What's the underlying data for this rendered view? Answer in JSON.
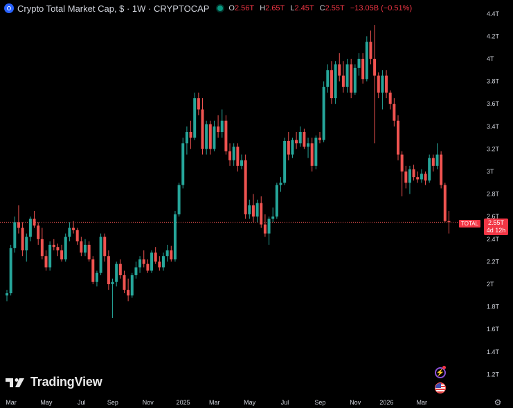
{
  "legend": {
    "title": "Crypto Total Market Cap, $ · 1W · CRYPTOCAP",
    "open_label": "O",
    "open": "2.56T",
    "high_label": "H",
    "high": "2.65T",
    "low_label": "L",
    "low": "2.45T",
    "close_label": "C",
    "close": "2.55T",
    "change": "−13.05B (−0.51%)"
  },
  "brand": {
    "name": "TradingView"
  },
  "price_tag": {
    "symbol": "TOTAL",
    "value": "2.55T",
    "countdown": "4d 12h"
  },
  "colors": {
    "up": "#26a69a",
    "down": "#ef5350",
    "background": "#000000",
    "text": "#d1d4dc",
    "accent": "#2962ff"
  },
  "icons": [
    "crypto-symbol-icon",
    "status-dot-icon",
    "tradingview-logo-icon",
    "lightning-icon",
    "us-flag-icon",
    "settings-icon"
  ],
  "chart_data": {
    "type": "candlestick",
    "y_ticks": [
      1.2,
      1.4,
      1.6,
      1.8,
      2.0,
      2.2,
      2.4,
      2.6,
      2.8,
      3.0,
      3.2,
      3.4,
      3.6,
      3.8,
      4.0,
      4.2,
      4.4
    ],
    "y_tick_labels": [
      "1.2T",
      "1.4T",
      "1.6T",
      "1.8T",
      "2T",
      "2.2T",
      "2.4T",
      "2.6T",
      "2.8T",
      "3T",
      "3.2T",
      "3.4T",
      "3.6T",
      "3.8T",
      "4T",
      "4.2T",
      "4.4T"
    ],
    "x_tick_labels": [
      "Mar",
      "May",
      "Jul",
      "Sep",
      "Nov",
      "2025",
      "Mar",
      "May",
      "Jul",
      "Sep",
      "Nov",
      "2026",
      "Mar"
    ],
    "x_tick_weeks": [
      0,
      9,
      18,
      26,
      35,
      44,
      52,
      61,
      70,
      79,
      88,
      96,
      105
    ],
    "last_price": 2.55,
    "candles": [
      [
        1.9,
        1.95,
        1.85,
        1.92
      ],
      [
        1.92,
        2.35,
        1.9,
        2.32
      ],
      [
        2.32,
        2.6,
        2.28,
        2.55
      ],
      [
        2.55,
        2.7,
        2.45,
        2.5
      ],
      [
        2.5,
        2.55,
        2.25,
        2.3
      ],
      [
        2.3,
        2.45,
        2.2,
        2.42
      ],
      [
        2.42,
        2.6,
        2.38,
        2.58
      ],
      [
        2.58,
        2.65,
        2.5,
        2.52
      ],
      [
        2.52,
        2.55,
        2.35,
        2.4
      ],
      [
        2.4,
        2.5,
        2.22,
        2.25
      ],
      [
        2.25,
        2.3,
        2.12,
        2.15
      ],
      [
        2.15,
        2.38,
        2.12,
        2.35
      ],
      [
        2.35,
        2.4,
        2.3,
        2.33
      ],
      [
        2.33,
        2.36,
        2.25,
        2.3
      ],
      [
        2.3,
        2.35,
        2.2,
        2.22
      ],
      [
        2.22,
        2.45,
        2.2,
        2.42
      ],
      [
        2.42,
        2.55,
        2.38,
        2.5
      ],
      [
        2.5,
        2.56,
        2.45,
        2.48
      ],
      [
        2.48,
        2.5,
        2.35,
        2.38
      ],
      [
        2.38,
        2.42,
        2.25,
        2.28
      ],
      [
        2.28,
        2.4,
        2.25,
        2.35
      ],
      [
        2.35,
        2.38,
        2.2,
        2.22
      ],
      [
        2.22,
        2.25,
        2.0,
        2.02
      ],
      [
        2.02,
        2.12,
        1.98,
        2.1
      ],
      [
        2.1,
        2.45,
        2.08,
        2.42
      ],
      [
        2.42,
        2.45,
        2.2,
        2.25
      ],
      [
        2.25,
        2.3,
        1.95,
        2.0
      ],
      [
        2.0,
        2.05,
        1.7,
        2.02
      ],
      [
        2.02,
        2.2,
        1.98,
        2.18
      ],
      [
        2.18,
        2.22,
        2.05,
        2.08
      ],
      [
        2.08,
        2.12,
        1.92,
        1.95
      ],
      [
        1.95,
        2.05,
        1.85,
        1.9
      ],
      [
        1.9,
        2.1,
        1.88,
        2.08
      ],
      [
        2.08,
        2.2,
        2.05,
        2.15
      ],
      [
        2.15,
        2.25,
        2.1,
        2.22
      ],
      [
        2.22,
        2.3,
        2.15,
        2.18
      ],
      [
        2.18,
        2.22,
        2.1,
        2.12
      ],
      [
        2.12,
        2.3,
        2.1,
        2.28
      ],
      [
        2.28,
        2.33,
        2.18,
        2.2
      ],
      [
        2.2,
        2.25,
        2.12,
        2.15
      ],
      [
        2.15,
        2.28,
        2.12,
        2.25
      ],
      [
        2.25,
        2.35,
        2.2,
        2.3
      ],
      [
        2.3,
        2.34,
        2.2,
        2.22
      ],
      [
        2.22,
        2.65,
        2.2,
        2.62
      ],
      [
        2.62,
        2.9,
        2.6,
        2.88
      ],
      [
        2.88,
        3.3,
        2.85,
        3.25
      ],
      [
        3.25,
        3.4,
        3.15,
        3.35
      ],
      [
        3.35,
        3.45,
        3.2,
        3.3
      ],
      [
        3.3,
        3.7,
        3.28,
        3.65
      ],
      [
        3.65,
        3.7,
        3.5,
        3.55
      ],
      [
        3.55,
        3.65,
        3.15,
        3.2
      ],
      [
        3.2,
        3.45,
        3.15,
        3.42
      ],
      [
        3.42,
        3.45,
        3.15,
        3.2
      ],
      [
        3.2,
        3.45,
        3.18,
        3.4
      ],
      [
        3.4,
        3.5,
        3.3,
        3.35
      ],
      [
        3.35,
        3.55,
        3.3,
        3.45
      ],
      [
        3.45,
        3.5,
        3.15,
        3.18
      ],
      [
        3.18,
        3.25,
        3.05,
        3.1
      ],
      [
        3.1,
        3.25,
        3.05,
        3.22
      ],
      [
        3.22,
        3.25,
        3.0,
        3.05
      ],
      [
        3.05,
        3.15,
        3.02,
        3.1
      ],
      [
        3.1,
        3.15,
        2.58,
        2.62
      ],
      [
        2.62,
        2.75,
        2.58,
        2.7
      ],
      [
        2.7,
        2.8,
        2.55,
        2.6
      ],
      [
        2.6,
        2.75,
        2.55,
        2.72
      ],
      [
        2.72,
        2.78,
        2.5,
        2.53
      ],
      [
        2.53,
        2.62,
        2.42,
        2.45
      ],
      [
        2.45,
        2.6,
        2.35,
        2.58
      ],
      [
        2.58,
        2.68,
        2.55,
        2.6
      ],
      [
        2.6,
        2.9,
        2.58,
        2.88
      ],
      [
        2.88,
        2.95,
        2.82,
        2.9
      ],
      [
        2.9,
        3.3,
        2.88,
        3.27
      ],
      [
        3.27,
        3.35,
        3.1,
        3.15
      ],
      [
        3.15,
        3.3,
        3.12,
        3.28
      ],
      [
        3.28,
        3.35,
        3.2,
        3.25
      ],
      [
        3.25,
        3.4,
        3.22,
        3.35
      ],
      [
        3.35,
        3.38,
        3.2,
        3.22
      ],
      [
        3.22,
        3.3,
        3.12,
        3.25
      ],
      [
        3.25,
        3.3,
        3.0,
        3.05
      ],
      [
        3.05,
        3.32,
        3.02,
        3.3
      ],
      [
        3.3,
        3.35,
        3.25,
        3.28
      ],
      [
        3.28,
        3.8,
        3.26,
        3.75
      ],
      [
        3.75,
        3.95,
        3.7,
        3.9
      ],
      [
        3.9,
        3.98,
        3.6,
        3.65
      ],
      [
        3.65,
        3.98,
        3.6,
        3.95
      ],
      [
        3.95,
        4.05,
        3.8,
        3.85
      ],
      [
        3.85,
        3.98,
        3.7,
        3.75
      ],
      [
        3.75,
        4.0,
        3.7,
        3.95
      ],
      [
        3.95,
        4.0,
        3.65,
        3.7
      ],
      [
        3.7,
        3.95,
        3.68,
        3.92
      ],
      [
        3.92,
        4.05,
        3.85,
        4.0
      ],
      [
        4.0,
        4.05,
        3.78,
        3.82
      ],
      [
        3.82,
        4.2,
        3.8,
        4.15
      ],
      [
        4.15,
        4.25,
        3.95,
        4.0
      ],
      [
        4.0,
        4.3,
        3.25,
        3.85
      ],
      [
        3.85,
        3.88,
        3.65,
        3.7
      ],
      [
        3.7,
        3.9,
        3.55,
        3.85
      ],
      [
        3.85,
        3.9,
        3.65,
        3.7
      ],
      [
        3.7,
        3.72,
        3.55,
        3.6
      ],
      [
        3.6,
        3.65,
        3.4,
        3.45
      ],
      [
        3.45,
        3.5,
        3.1,
        3.15
      ],
      [
        3.15,
        3.18,
        2.78,
        3.0
      ],
      [
        3.0,
        3.05,
        2.85,
        2.9
      ],
      [
        2.9,
        3.05,
        2.8,
        3.02
      ],
      [
        3.02,
        3.06,
        2.92,
        2.95
      ],
      [
        2.95,
        3.0,
        2.9,
        2.93
      ],
      [
        2.93,
        3.02,
        2.9,
        2.98
      ],
      [
        2.98,
        3.0,
        2.88,
        2.92
      ],
      [
        2.92,
        3.15,
        2.9,
        3.12
      ],
      [
        3.12,
        3.15,
        3.0,
        3.05
      ],
      [
        3.05,
        3.25,
        3.02,
        3.15
      ],
      [
        3.15,
        3.18,
        2.85,
        2.88
      ],
      [
        2.88,
        2.9,
        2.55,
        2.56
      ],
      [
        2.56,
        2.65,
        2.45,
        2.55
      ]
    ]
  }
}
